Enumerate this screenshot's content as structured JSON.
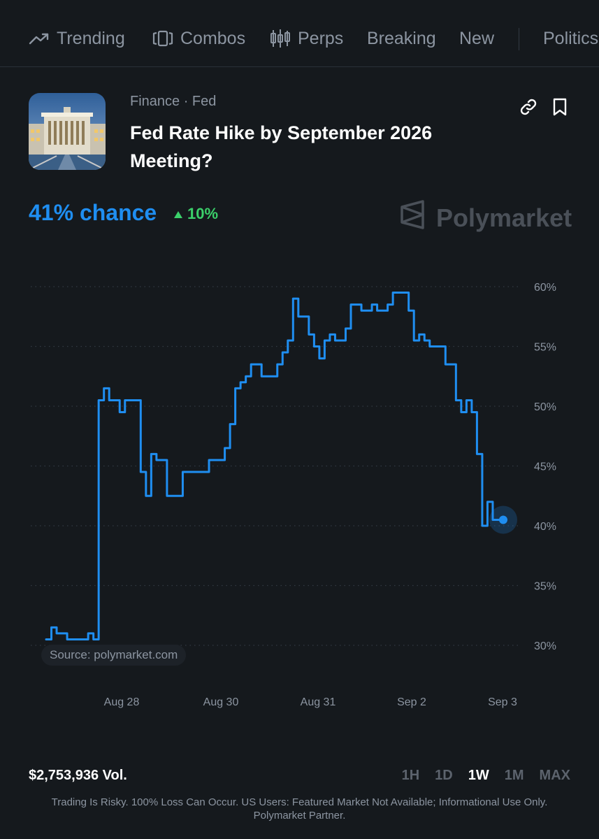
{
  "nav": {
    "items": [
      {
        "label": "Trending",
        "icon": "trending-icon"
      },
      {
        "label": "Combos",
        "icon": "combos-icon"
      },
      {
        "label": "Perps",
        "icon": "candlestick-icon"
      },
      {
        "label": "Breaking"
      },
      {
        "label": "New"
      },
      {
        "label": "Politics"
      }
    ]
  },
  "market": {
    "category": "Finance · Fed",
    "title": "Fed Rate Hike by September 2026 Meeting?",
    "chance_label": "41% chance",
    "change_label": "10%",
    "change_direction": "up",
    "brand": "Polymarket",
    "volume_label": "$2,753,936 Vol.",
    "source_label": "Source: polymarket.com"
  },
  "ranges": [
    "1H",
    "1D",
    "1W",
    "1M",
    "MAX"
  ],
  "active_range": "1W",
  "disclaimer": "Trading Is Risky. 100% Loss Can Occur. US Users: Featured Market Not Available; Informational Use Only. Polymarket Partner.",
  "colors": {
    "background": "#15191d",
    "accent": "#1f8ef1",
    "positive": "#3bd06a",
    "muted": "#8c95a1"
  },
  "chart_data": {
    "type": "line",
    "x_tick_labels": [
      "Aug 28",
      "Aug 30",
      "Aug 31",
      "Sep 2",
      "Sep 3"
    ],
    "y_tick_labels": [
      "60%",
      "55%",
      "50%",
      "45%",
      "40%",
      "35%",
      "30%"
    ],
    "ylim": [
      30,
      60
    ],
    "grid": true,
    "series": [
      {
        "values": [
          30.5,
          31.5,
          31,
          31,
          30.5,
          30.5,
          30.5,
          30.5,
          31,
          30.5,
          50.5,
          51.5,
          50.5,
          50.5,
          49.5,
          50.5,
          50.5,
          50.5,
          44.5,
          42.5,
          46,
          45.5,
          45.5,
          42.5,
          42.5,
          42.5,
          44.5,
          44.5,
          44.5,
          44.5,
          44.5,
          45.5,
          45.5,
          45.5,
          46.5,
          48.5,
          51.5,
          52,
          52.5,
          53.5,
          53.5,
          52.5,
          52.5,
          52.5,
          53.5,
          54.5,
          55.5,
          59,
          57.5,
          57.5,
          56,
          55,
          54,
          55.5,
          56,
          55.5,
          55.5,
          56.5,
          58.5,
          58.5,
          58,
          58,
          58.5,
          58,
          58,
          58.5,
          59.5,
          59.5,
          59.5,
          58,
          55.5,
          56,
          55.5,
          55,
          55,
          55,
          53.5,
          53.5,
          50.5,
          49.5,
          50.5,
          49.5,
          46,
          40,
          42,
          40.5,
          40.5,
          40.5
        ]
      }
    ]
  }
}
